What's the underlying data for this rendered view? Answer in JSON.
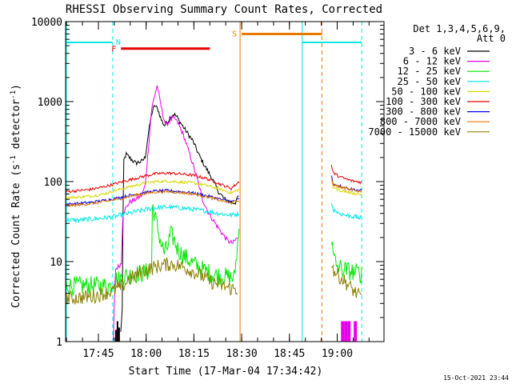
{
  "chart_data": {
    "type": "line",
    "title": "RHESSI Observing Summary Count Rates, Corrected",
    "xlabel": "Start Time (17-Mar-04 17:34:42)",
    "ylabel_main": "Corrected Count Rate (s",
    "ylabel_sup1": "-1",
    "ylabel_mid": " detector",
    "ylabel_sup2": "-1",
    "ylabel_end": ")",
    "x_unit": "minutes since 17:34:42",
    "xlim": [
      0,
      100
    ],
    "y_scale": "log",
    "ylim": [
      1,
      10000
    ],
    "x_ticks": [
      {
        "t": 10.3,
        "label": "17:45"
      },
      {
        "t": 25.3,
        "label": "18:00"
      },
      {
        "t": 40.3,
        "label": "18:15"
      },
      {
        "t": 55.3,
        "label": "18:30"
      },
      {
        "t": 70.3,
        "label": "18:45"
      },
      {
        "t": 85.3,
        "label": "19:00"
      }
    ],
    "y_ticks": [
      {
        "v": 1,
        "label": "1"
      },
      {
        "v": 10,
        "label": "10"
      },
      {
        "v": 100,
        "label": "100"
      },
      {
        "v": 1000,
        "label": "1000"
      },
      {
        "v": 10000,
        "label": "10000"
      }
    ],
    "legend_header": [
      "Det 1,3,4,5,6,9,",
      "Att 0"
    ],
    "legend_position": "right",
    "data_gap": [
      54.5,
      83.2
    ],
    "series": [
      {
        "name": "3 - 6 keV",
        "color": "#000000",
        "noise": 0.05,
        "points": [
          [
            17.3,
            1.3
          ],
          [
            17.8,
            2.5
          ],
          [
            18.2,
            180
          ],
          [
            19,
            220
          ],
          [
            20,
            200
          ],
          [
            22,
            170
          ],
          [
            24,
            180
          ],
          [
            25,
            200
          ],
          [
            26,
            400
          ],
          [
            27,
            700
          ],
          [
            28,
            900
          ],
          [
            29,
            800
          ],
          [
            30,
            600
          ],
          [
            31,
            500
          ],
          [
            32,
            560
          ],
          [
            33,
            650
          ],
          [
            34,
            700
          ],
          [
            35,
            640
          ],
          [
            36,
            550
          ],
          [
            38,
            420
          ],
          [
            40,
            320
          ],
          [
            42,
            210
          ],
          [
            44,
            150
          ],
          [
            46,
            110
          ],
          [
            48,
            75
          ],
          [
            50,
            60
          ],
          [
            52,
            55
          ],
          [
            53.5,
            55
          ],
          [
            54.5,
            70
          ]
        ]
      },
      {
        "name": "6 - 12 keV",
        "color": "#e800e8",
        "noise": 0.05,
        "points": [
          [
            15,
            1
          ],
          [
            15.6,
            8
          ],
          [
            17,
            9
          ],
          [
            17.5,
            9.5
          ],
          [
            18,
            40
          ],
          [
            20,
            55
          ],
          [
            22,
            60
          ],
          [
            24,
            68
          ],
          [
            25,
            90
          ],
          [
            26,
            260
          ],
          [
            27,
            800
          ],
          [
            28,
            1200
          ],
          [
            28.8,
            1600
          ],
          [
            29.5,
            1100
          ],
          [
            30.5,
            700
          ],
          [
            31.5,
            500
          ],
          [
            32.5,
            560
          ],
          [
            33.5,
            620
          ],
          [
            34.5,
            600
          ],
          [
            35.5,
            520
          ],
          [
            37,
            380
          ],
          [
            39,
            220
          ],
          [
            41,
            120
          ],
          [
            43,
            60
          ],
          [
            45,
            40
          ],
          [
            47,
            30
          ],
          [
            49,
            23
          ],
          [
            51,
            18
          ],
          [
            52.5,
            17
          ],
          [
            54,
            20
          ]
        ]
      },
      {
        "name": "12 - 25 keV",
        "color": "#00e800",
        "noise": 0.2,
        "points": [
          [
            0,
            5
          ],
          [
            3,
            5
          ],
          [
            6,
            5
          ],
          [
            9,
            5
          ],
          [
            12,
            5
          ],
          [
            14.5,
            5
          ],
          [
            15,
            6
          ],
          [
            17,
            6
          ],
          [
            18,
            6.5
          ],
          [
            20,
            6.8
          ],
          [
            22,
            7
          ],
          [
            24,
            7.2
          ],
          [
            26,
            7.5
          ],
          [
            27,
            9
          ],
          [
            27.3,
            60
          ],
          [
            27.8,
            40
          ],
          [
            29,
            25
          ],
          [
            30,
            17
          ],
          [
            31,
            13
          ],
          [
            32,
            15
          ],
          [
            33,
            22
          ],
          [
            34,
            19
          ],
          [
            35,
            15
          ],
          [
            36,
            13
          ],
          [
            38,
            11
          ],
          [
            40,
            9.5
          ],
          [
            43,
            8
          ],
          [
            46,
            7
          ],
          [
            50,
            6.5
          ],
          [
            53,
            6.2
          ],
          [
            54.5,
            25
          ]
        ]
      },
      {
        "name": "25 - 50 keV",
        "color": "#00e8e8",
        "noise": 0.05,
        "points": [
          [
            0,
            33
          ],
          [
            4,
            33
          ],
          [
            8,
            34
          ],
          [
            12,
            35
          ],
          [
            16,
            37
          ],
          [
            20,
            40
          ],
          [
            24,
            44
          ],
          [
            28,
            47
          ],
          [
            32,
            48
          ],
          [
            36,
            47
          ],
          [
            40,
            45
          ],
          [
            44,
            43
          ],
          [
            48,
            40
          ],
          [
            52,
            38
          ],
          [
            54.5,
            40
          ]
        ]
      },
      {
        "name": "50 - 100 keV",
        "color": "#d8d800",
        "noise": 0.03,
        "points": [
          [
            0,
            63
          ],
          [
            4,
            64
          ],
          [
            8,
            66
          ],
          [
            12,
            70
          ],
          [
            16,
            78
          ],
          [
            20,
            86
          ],
          [
            24,
            94
          ],
          [
            28,
            100
          ],
          [
            32,
            101
          ],
          [
            36,
            99
          ],
          [
            40,
            96
          ],
          [
            44,
            90
          ],
          [
            48,
            82
          ],
          [
            52,
            72
          ],
          [
            54.5,
            80
          ]
        ]
      },
      {
        "name": "100 - 300 keV",
        "color": "#e80000",
        "noise": 0.03,
        "points": [
          [
            0,
            75
          ],
          [
            4,
            77
          ],
          [
            8,
            80
          ],
          [
            12,
            86
          ],
          [
            16,
            95
          ],
          [
            20,
            105
          ],
          [
            24,
            115
          ],
          [
            28,
            125
          ],
          [
            32,
            128
          ],
          [
            36,
            125
          ],
          [
            40,
            120
          ],
          [
            44,
            110
          ],
          [
            48,
            95
          ],
          [
            52,
            82
          ],
          [
            54.5,
            100
          ]
        ]
      },
      {
        "name": "300 - 800 keV",
        "color": "#0000e8",
        "noise": 0.03,
        "points": [
          [
            0,
            52
          ],
          [
            4,
            53
          ],
          [
            8,
            55
          ],
          [
            12,
            58
          ],
          [
            16,
            62
          ],
          [
            20,
            67
          ],
          [
            24,
            72
          ],
          [
            28,
            76
          ],
          [
            32,
            77
          ],
          [
            36,
            75
          ],
          [
            40,
            72
          ],
          [
            44,
            67
          ],
          [
            48,
            61
          ],
          [
            52,
            56
          ],
          [
            54.5,
            60
          ]
        ]
      },
      {
        "name": "800 - 7000 keV",
        "color": "#e87800",
        "noise": 0.03,
        "points": [
          [
            0,
            50
          ],
          [
            4,
            51
          ],
          [
            8,
            53
          ],
          [
            12,
            56
          ],
          [
            16,
            60
          ],
          [
            20,
            65
          ],
          [
            24,
            70
          ],
          [
            28,
            74
          ],
          [
            32,
            75
          ],
          [
            36,
            73
          ],
          [
            40,
            70
          ],
          [
            44,
            65
          ],
          [
            48,
            59
          ],
          [
            52,
            54
          ],
          [
            54.5,
            58
          ]
        ]
      },
      {
        "name": "7000 - 15000 keV",
        "color": "#8b8000",
        "noise": 0.15,
        "points": [
          [
            0,
            3.5
          ],
          [
            3,
            3.5
          ],
          [
            6,
            3.6
          ],
          [
            9,
            3.7
          ],
          [
            12,
            4
          ],
          [
            15,
            4.3
          ],
          [
            18,
            5
          ],
          [
            20,
            6
          ],
          [
            22,
            6.8
          ],
          [
            24,
            7.5
          ],
          [
            26,
            8
          ],
          [
            28,
            8.5
          ],
          [
            30,
            9
          ],
          [
            32,
            9.3
          ],
          [
            34,
            9.2
          ],
          [
            36,
            8.8
          ],
          [
            38,
            8.2
          ],
          [
            40,
            7.5
          ],
          [
            43,
            6.5
          ],
          [
            46,
            5.5
          ],
          [
            49,
            5
          ],
          [
            52,
            4.6
          ],
          [
            54,
            4.5
          ]
        ]
      }
    ],
    "series_after_gap": [
      {
        "color": "#000000",
        "points": []
      },
      {
        "color": "#e800e8",
        "points": []
      },
      {
        "color": "#00e800",
        "points": [
          [
            83.5,
            18
          ],
          [
            84,
            12
          ],
          [
            85,
            9
          ],
          [
            87,
            8
          ],
          [
            90,
            7.5
          ],
          [
            93,
            7
          ]
        ]
      },
      {
        "color": "#00e8e8",
        "points": [
          [
            83.5,
            55
          ],
          [
            84,
            45
          ],
          [
            86,
            40
          ],
          [
            88,
            38
          ],
          [
            90,
            37
          ],
          [
            93,
            35
          ]
        ]
      },
      {
        "color": "#d8d800",
        "points": [
          [
            83.5,
            110
          ],
          [
            84,
            85
          ],
          [
            86,
            78
          ],
          [
            88,
            75
          ],
          [
            90,
            72
          ],
          [
            93,
            69
          ]
        ]
      },
      {
        "color": "#e80000",
        "points": [
          [
            83.5,
            160
          ],
          [
            84,
            130
          ],
          [
            86,
            115
          ],
          [
            88,
            108
          ],
          [
            90,
            102
          ],
          [
            93,
            98
          ]
        ]
      },
      {
        "color": "#0000e8",
        "points": [
          [
            83.5,
            120
          ],
          [
            84,
            95
          ],
          [
            86,
            88
          ],
          [
            88,
            84
          ],
          [
            90,
            80
          ],
          [
            93,
            77
          ]
        ]
      },
      {
        "color": "#e87800",
        "points": [
          [
            83.5,
            115
          ],
          [
            84,
            92
          ],
          [
            86,
            86
          ],
          [
            88,
            82
          ],
          [
            90,
            78
          ],
          [
            93,
            75
          ]
        ]
      },
      {
        "color": "#8b8000",
        "points": [
          [
            83.5,
            10
          ],
          [
            84,
            8
          ],
          [
            86,
            6.5
          ],
          [
            88,
            5.5
          ],
          [
            90,
            4.5
          ],
          [
            93,
            3.5
          ]
        ]
      }
    ],
    "magenta_spikes_after_gap": [
      [
        87,
        1.8
      ],
      [
        88,
        1.8
      ],
      [
        89,
        1.8
      ],
      [
        91,
        1.8
      ]
    ],
    "black_spikes_before_flare": [
      [
        15.8,
        1.4
      ],
      [
        16.3,
        1.8
      ],
      [
        16.8,
        1.5
      ]
    ],
    "annotations": {
      "night_bars": [
        [
          0,
          14.8,
          5500
        ],
        [
          74.3,
          93,
          5500
        ]
      ],
      "night_dash": [
        14.8,
        93
      ],
      "night_solid": [
        74.3
      ],
      "flare_bar": [
        17.4,
        45.3,
        4600
      ],
      "saa_bar": [
        55.3,
        80.5,
        7000
      ],
      "saa_solid": 54.8,
      "saa_dash": 80.5,
      "labels": {
        "N": "N",
        "F": "F",
        "S": "S"
      }
    },
    "colors": {
      "night": "#00e8e8",
      "flare": "#e80000",
      "saa": "#e87800"
    }
  },
  "footer": {
    "timestamp": "15-Oct-2021 23:44"
  }
}
